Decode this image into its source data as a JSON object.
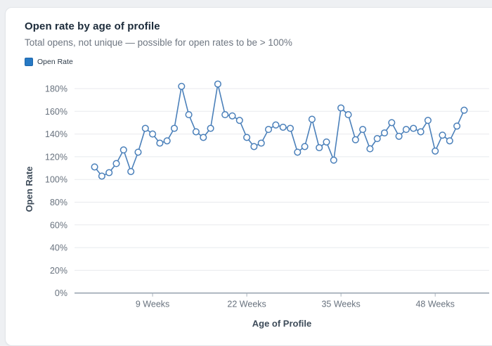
{
  "card": {
    "title": "Open rate by age of profile",
    "subtitle": "Total opens, not unique — possible for open rates to be > 100%",
    "legend": {
      "label": "Open Rate",
      "swatch_color": "#2779c4",
      "swatch_border": "#1d66ab"
    }
  },
  "colors": {
    "page_background": "#eef0f3",
    "card_background": "#ffffff",
    "card_border": "#e2e5e9",
    "title_text": "#1c2b3a",
    "subtitle_text": "#6e7681",
    "line": "#4b80ba",
    "marker_fill": "#ffffff",
    "gridline": "#e8eaed",
    "axis_line": "#8d99a6",
    "tick_text": "#68727e",
    "axis_title_text": "#3d4b59",
    "tick_mark": "#aab3bd"
  },
  "chart_data": {
    "type": "line",
    "title": "Open rate by age of profile",
    "subtitle": "Total opens, not unique — possible for open rates to be > 100%",
    "xlabel": "Age of Profile",
    "ylabel": "Open Rate",
    "legend_position": "top-left",
    "grid": true,
    "marker": "open-circle",
    "line_color": "#4b80ba",
    "x_unit": "weeks",
    "x": [
      1,
      2,
      3,
      4,
      5,
      6,
      7,
      8,
      9,
      10,
      11,
      12,
      13,
      14,
      15,
      16,
      17,
      18,
      19,
      20,
      21,
      22,
      23,
      24,
      25,
      26,
      27,
      28,
      29,
      30,
      31,
      32,
      33,
      34,
      35,
      36,
      37,
      38,
      39,
      40,
      41,
      42,
      43,
      44,
      45,
      46,
      47,
      48,
      49,
      50,
      51,
      52
    ],
    "series": [
      {
        "name": "Open Rate",
        "values": [
          111,
          103,
          106,
          114,
          126,
          107,
          124,
          145,
          140,
          132,
          134,
          145,
          182,
          157,
          142,
          137,
          145,
          184,
          157,
          156,
          152,
          137,
          129,
          132,
          144,
          148,
          146,
          145,
          124,
          129,
          153,
          128,
          133,
          117,
          163,
          157,
          135,
          144,
          127,
          136,
          141,
          150,
          138,
          144,
          145,
          142,
          152,
          125,
          139,
          134,
          147,
          161
        ]
      }
    ],
    "ylim": [
      0,
      190
    ],
    "y_ticks": [
      0,
      20,
      40,
      60,
      80,
      100,
      120,
      140,
      160,
      180
    ],
    "y_tick_suffix": "%",
    "x_ticks": [
      {
        "week": 9,
        "label": "9 Weeks"
      },
      {
        "week": 22,
        "label": "22 Weeks"
      },
      {
        "week": 35,
        "label": "35 Weeks"
      },
      {
        "week": 48,
        "label": "48 Weeks"
      }
    ]
  }
}
